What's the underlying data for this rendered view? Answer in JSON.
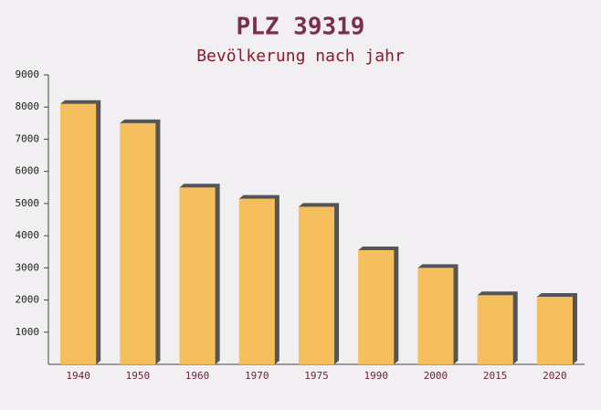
{
  "chart_data": {
    "type": "bar",
    "title": "PLZ 39319",
    "subtitle": "Bevölkerung nach jahr",
    "categories": [
      "1940",
      "1950",
      "1960",
      "1970",
      "1975",
      "1990",
      "2000",
      "2015",
      "2020"
    ],
    "values": [
      8100,
      7500,
      5500,
      5150,
      4900,
      3550,
      3000,
      2150,
      2100
    ],
    "color": "#f6bf5e",
    "ylim": [
      0,
      9000
    ],
    "yticks": [
      1000,
      2000,
      3000,
      4000,
      5000,
      6000,
      7000,
      8000,
      9000
    ],
    "grid": false
  }
}
